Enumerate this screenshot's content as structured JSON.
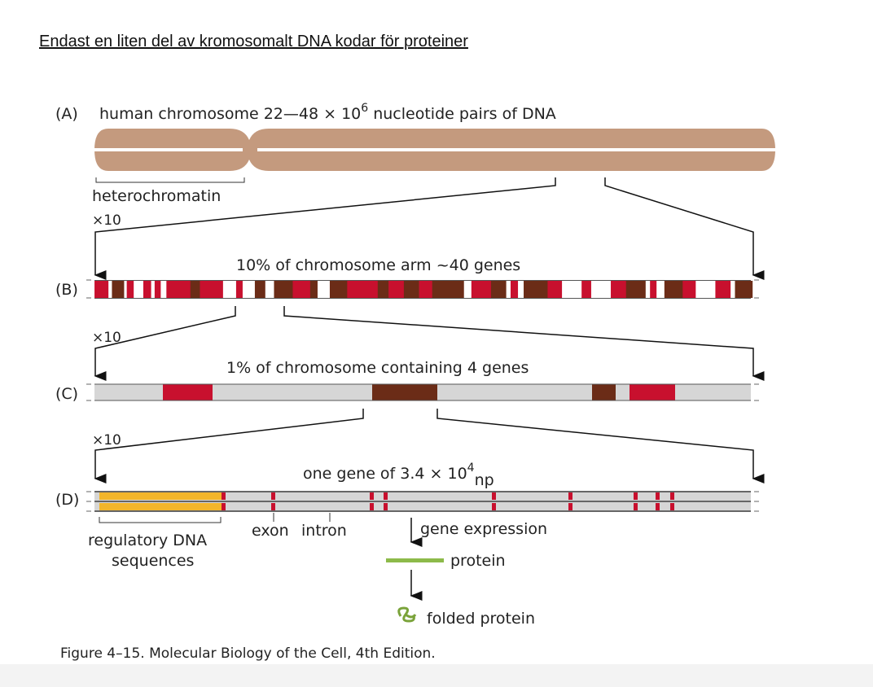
{
  "title": "Endast en liten del av kromosomalt DNA kodar för proteiner",
  "panel_a": {
    "label": "(A)",
    "caption": "human chromosome 22—48 × 10",
    "caption_sup": "6",
    "caption_end": " nucleotide pairs of DNA",
    "heterochromatin": "heterochromatin",
    "zoom": "×10"
  },
  "panel_b": {
    "label": "(B)",
    "caption": "10% of chromosome arm ~40 genes",
    "zoom": "×10"
  },
  "panel_c": {
    "label": "(C)",
    "caption": "1% of chromosome containing 4 genes",
    "zoom": "×10"
  },
  "panel_d": {
    "label": "(D)",
    "caption": "one gene of 3.4 × 10",
    "caption_sup": "4",
    "caption_sub": "np",
    "regulatory_1": "regulatory DNA",
    "regulatory_2": "sequences",
    "exon": "exon",
    "intron": "intron",
    "gene_expression": "gene expression",
    "protein": "protein",
    "folded_protein": "folded protein"
  },
  "figure_caption": "Figure 4–15. Molecular Biology of the Cell, 4th Edition.",
  "colors": {
    "chromosome": "#c49a7e",
    "red": "#c8102e",
    "brown": "#6b2c17",
    "gray": "#d6d6d6",
    "yellow": "#f2b52a",
    "green": "#8dba4a"
  }
}
